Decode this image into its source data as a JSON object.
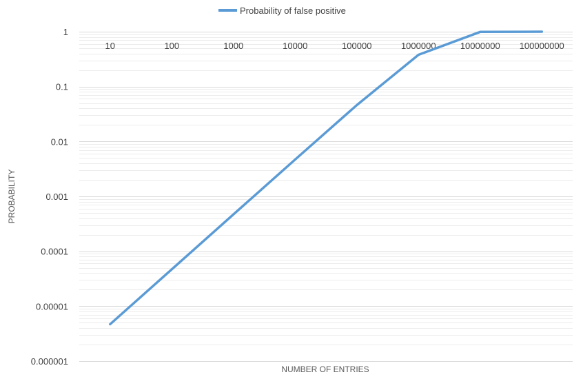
{
  "chart_data": {
    "type": "line",
    "title": "",
    "xlabel": "NUMBER OF ENTRIES",
    "ylabel": "PROBABILITY",
    "x_axis_position": "top",
    "legend_position": "top-center",
    "grid": true,
    "yscale": "log",
    "ylim": [
      1e-06,
      1
    ],
    "y_tick_labels": [
      "1",
      "0.1",
      "0.01",
      "0.001",
      "0.0001",
      "0.00001",
      "0.000001"
    ],
    "categories": [
      "10",
      "100",
      "1000",
      "10000",
      "100000",
      "1000000",
      "10000000",
      "100000000"
    ],
    "series": [
      {
        "name": "Probability of false positive",
        "color": "#5b9bd5",
        "values": [
          4.7e-06,
          4.7e-05,
          0.00047,
          0.0047,
          0.046,
          0.38,
          0.99,
          1.0
        ]
      }
    ]
  }
}
